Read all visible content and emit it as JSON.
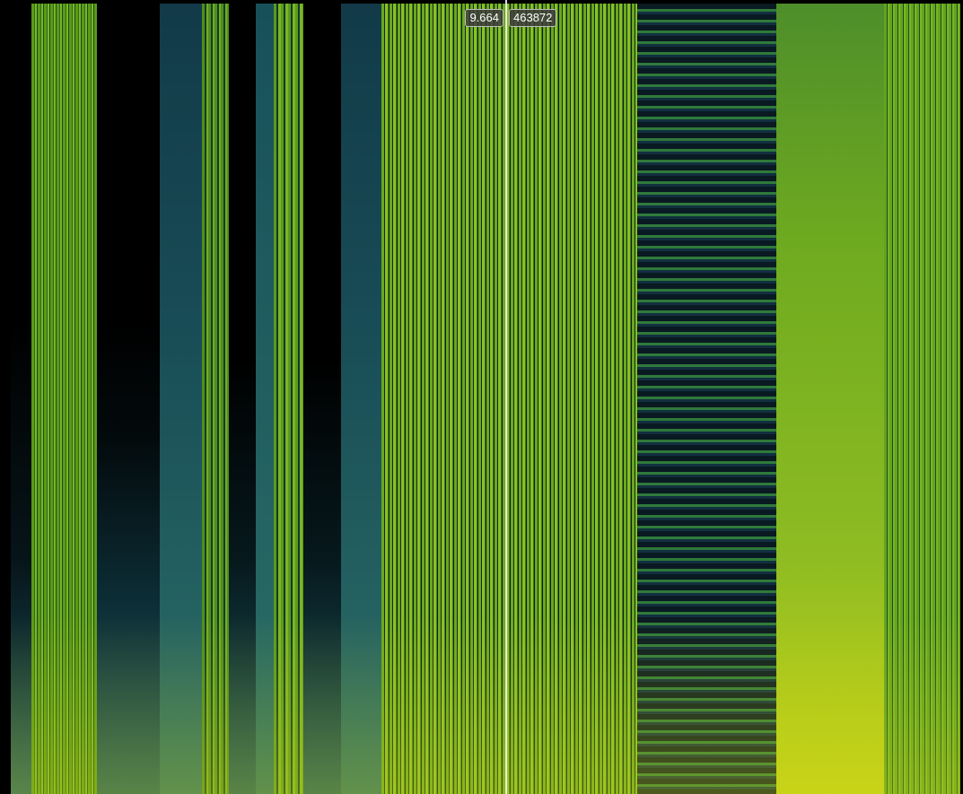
{
  "cursor": {
    "time": "9.664",
    "sample": "463872"
  }
}
